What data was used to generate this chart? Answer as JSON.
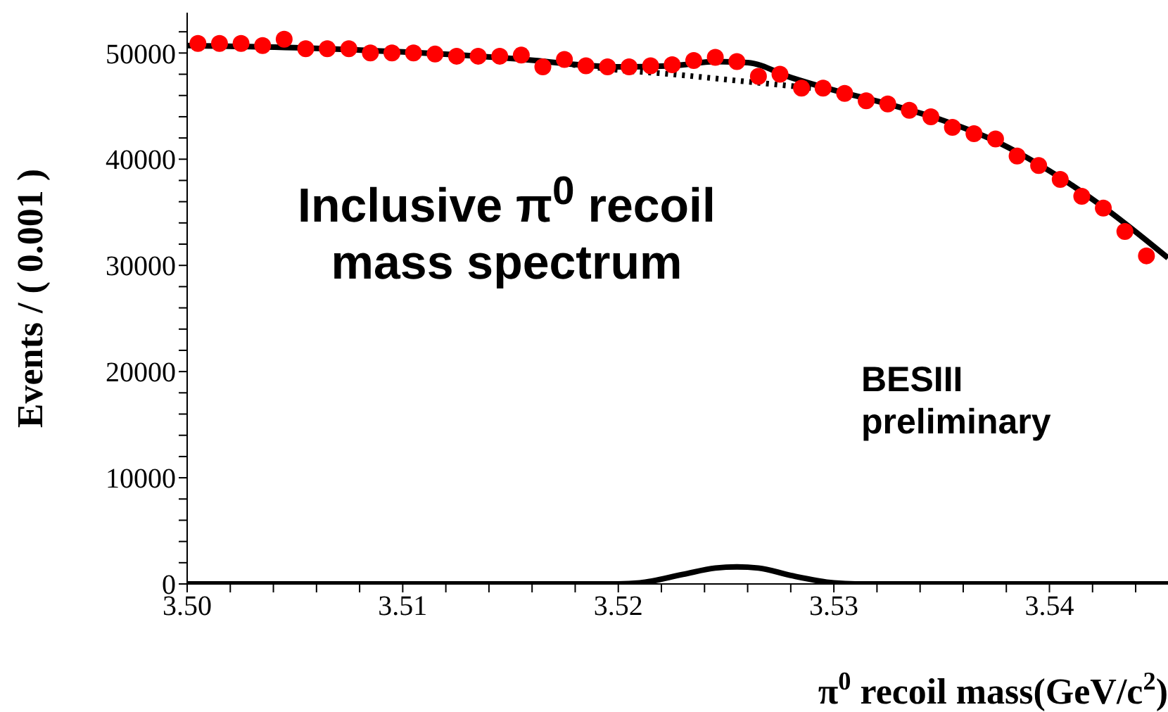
{
  "chart_data": {
    "type": "scatter",
    "xlabel": "π$^{0}$ recoil mass(GeV/c$^{2}$)",
    "ylabel": "Events / ( 0.001 )",
    "annotations": [
      "Inclusive π$^{0}$ recoil mass spectrum",
      "BESIII preliminary"
    ],
    "xlim": [
      3.5,
      3.5455
    ],
    "ylim": [
      0,
      53800
    ],
    "xticks": [
      {
        "value": 3.5,
        "label": "3.50"
      },
      {
        "value": 3.502,
        "label": null
      },
      {
        "value": 3.504,
        "label": null
      },
      {
        "value": 3.506,
        "label": null
      },
      {
        "value": 3.508,
        "label": null
      },
      3.51,
      {
        "value": 3.512,
        "label": null
      },
      {
        "value": 3.514,
        "label": null
      },
      {
        "value": 3.516,
        "label": null
      },
      {
        "value": 3.518,
        "label": null
      },
      3.52,
      {
        "value": 3.522,
        "label": null
      },
      {
        "value": 3.524,
        "label": null
      },
      {
        "value": 3.526,
        "label": null
      },
      {
        "value": 3.528,
        "label": null
      },
      3.53,
      {
        "value": 3.532,
        "label": null
      },
      {
        "value": 3.534,
        "label": null
      },
      {
        "value": 3.536,
        "label": null
      },
      {
        "value": 3.538,
        "label": null
      },
      3.54,
      {
        "value": 3.542,
        "label": null
      },
      {
        "value": 3.544,
        "label": null
      }
    ],
    "yticks": [
      0,
      {
        "value": 2000,
        "label": null
      },
      {
        "value": 4000,
        "label": null
      },
      {
        "value": 6000,
        "label": null
      },
      {
        "value": 8000,
        "label": null
      },
      10000,
      {
        "value": 12000,
        "label": null
      },
      {
        "value": 14000,
        "label": null
      },
      {
        "value": 16000,
        "label": null
      },
      {
        "value": 18000,
        "label": null
      },
      20000,
      {
        "value": 22000,
        "label": null
      },
      {
        "value": 24000,
        "label": null
      },
      {
        "value": 26000,
        "label": null
      },
      {
        "value": 28000,
        "label": null
      },
      30000,
      {
        "value": 32000,
        "label": null
      },
      {
        "value": 34000,
        "label": null
      },
      {
        "value": 36000,
        "label": null
      },
      {
        "value": 38000,
        "label": null
      },
      40000,
      {
        "value": 42000,
        "label": null
      },
      {
        "value": 44000,
        "label": null
      },
      {
        "value": 46000,
        "label": null
      },
      {
        "value": 48000,
        "label": null
      },
      50000,
      {
        "value": 52000,
        "label": null
      }
    ],
    "series": [
      {
        "type": "line",
        "color": "#000000",
        "line_style": "solid",
        "x": [
          3.5,
          3.505,
          3.51,
          3.515,
          3.52,
          3.5225,
          3.5245,
          3.526,
          3.528,
          3.53,
          3.5325,
          3.535,
          3.5375,
          3.54,
          3.5425,
          3.5455
        ],
        "values": [
          50700,
          50500,
          50100,
          49500,
          48700,
          48800,
          49200,
          49100,
          47700,
          46500,
          45200,
          43700,
          41700,
          38900,
          35500,
          30700
        ]
      },
      {
        "type": "line",
        "color": "#000000",
        "line_style": "dotted",
        "x": [
          3.5175,
          3.52,
          3.5225,
          3.525,
          3.5275,
          3.5295
        ],
        "values": [
          49000,
          48400,
          48000,
          47500,
          47000,
          46600
        ]
      },
      {
        "type": "line",
        "color": "#000000",
        "line_style": "solid",
        "x": [
          3.5,
          3.52,
          3.521,
          3.523,
          3.5245,
          3.5255,
          3.5265,
          3.528,
          3.53,
          3.531,
          3.5455
        ],
        "values": [
          0,
          0,
          100,
          900,
          1500,
          1600,
          1500,
          800,
          100,
          0,
          0
        ]
      },
      {
        "color": "#ff0000",
        "marker": "circle",
        "x": [
          3.5005,
          3.5015,
          3.5025,
          3.5035,
          3.5045,
          3.5055,
          3.5065,
          3.5075,
          3.5085,
          3.5095,
          3.5105,
          3.5115,
          3.5125,
          3.5135,
          3.5145,
          3.5155,
          3.5165,
          3.5175,
          3.5185,
          3.5195,
          3.5205,
          3.5215,
          3.5225,
          3.5235,
          3.5245,
          3.5255,
          3.5265,
          3.5275,
          3.5285,
          3.5295,
          3.5305,
          3.5315,
          3.5325,
          3.5335,
          3.5345,
          3.5355,
          3.5365,
          3.5375,
          3.5385,
          3.5395,
          3.5405,
          3.5415,
          3.5425,
          3.5435,
          3.5445
        ],
        "values": [
          50900,
          50900,
          50900,
          50700,
          51300,
          50400,
          50400,
          50400,
          50000,
          50000,
          50000,
          49900,
          49700,
          49700,
          49700,
          49800,
          48700,
          49400,
          48800,
          48700,
          48700,
          48800,
          48900,
          49300,
          49600,
          49200,
          47800,
          48000,
          46700,
          46700,
          46200,
          45500,
          45200,
          44600,
          44000,
          43000,
          42400,
          41900,
          40300,
          39400,
          38100,
          36500,
          35400,
          33200,
          30900
        ]
      }
    ]
  }
}
